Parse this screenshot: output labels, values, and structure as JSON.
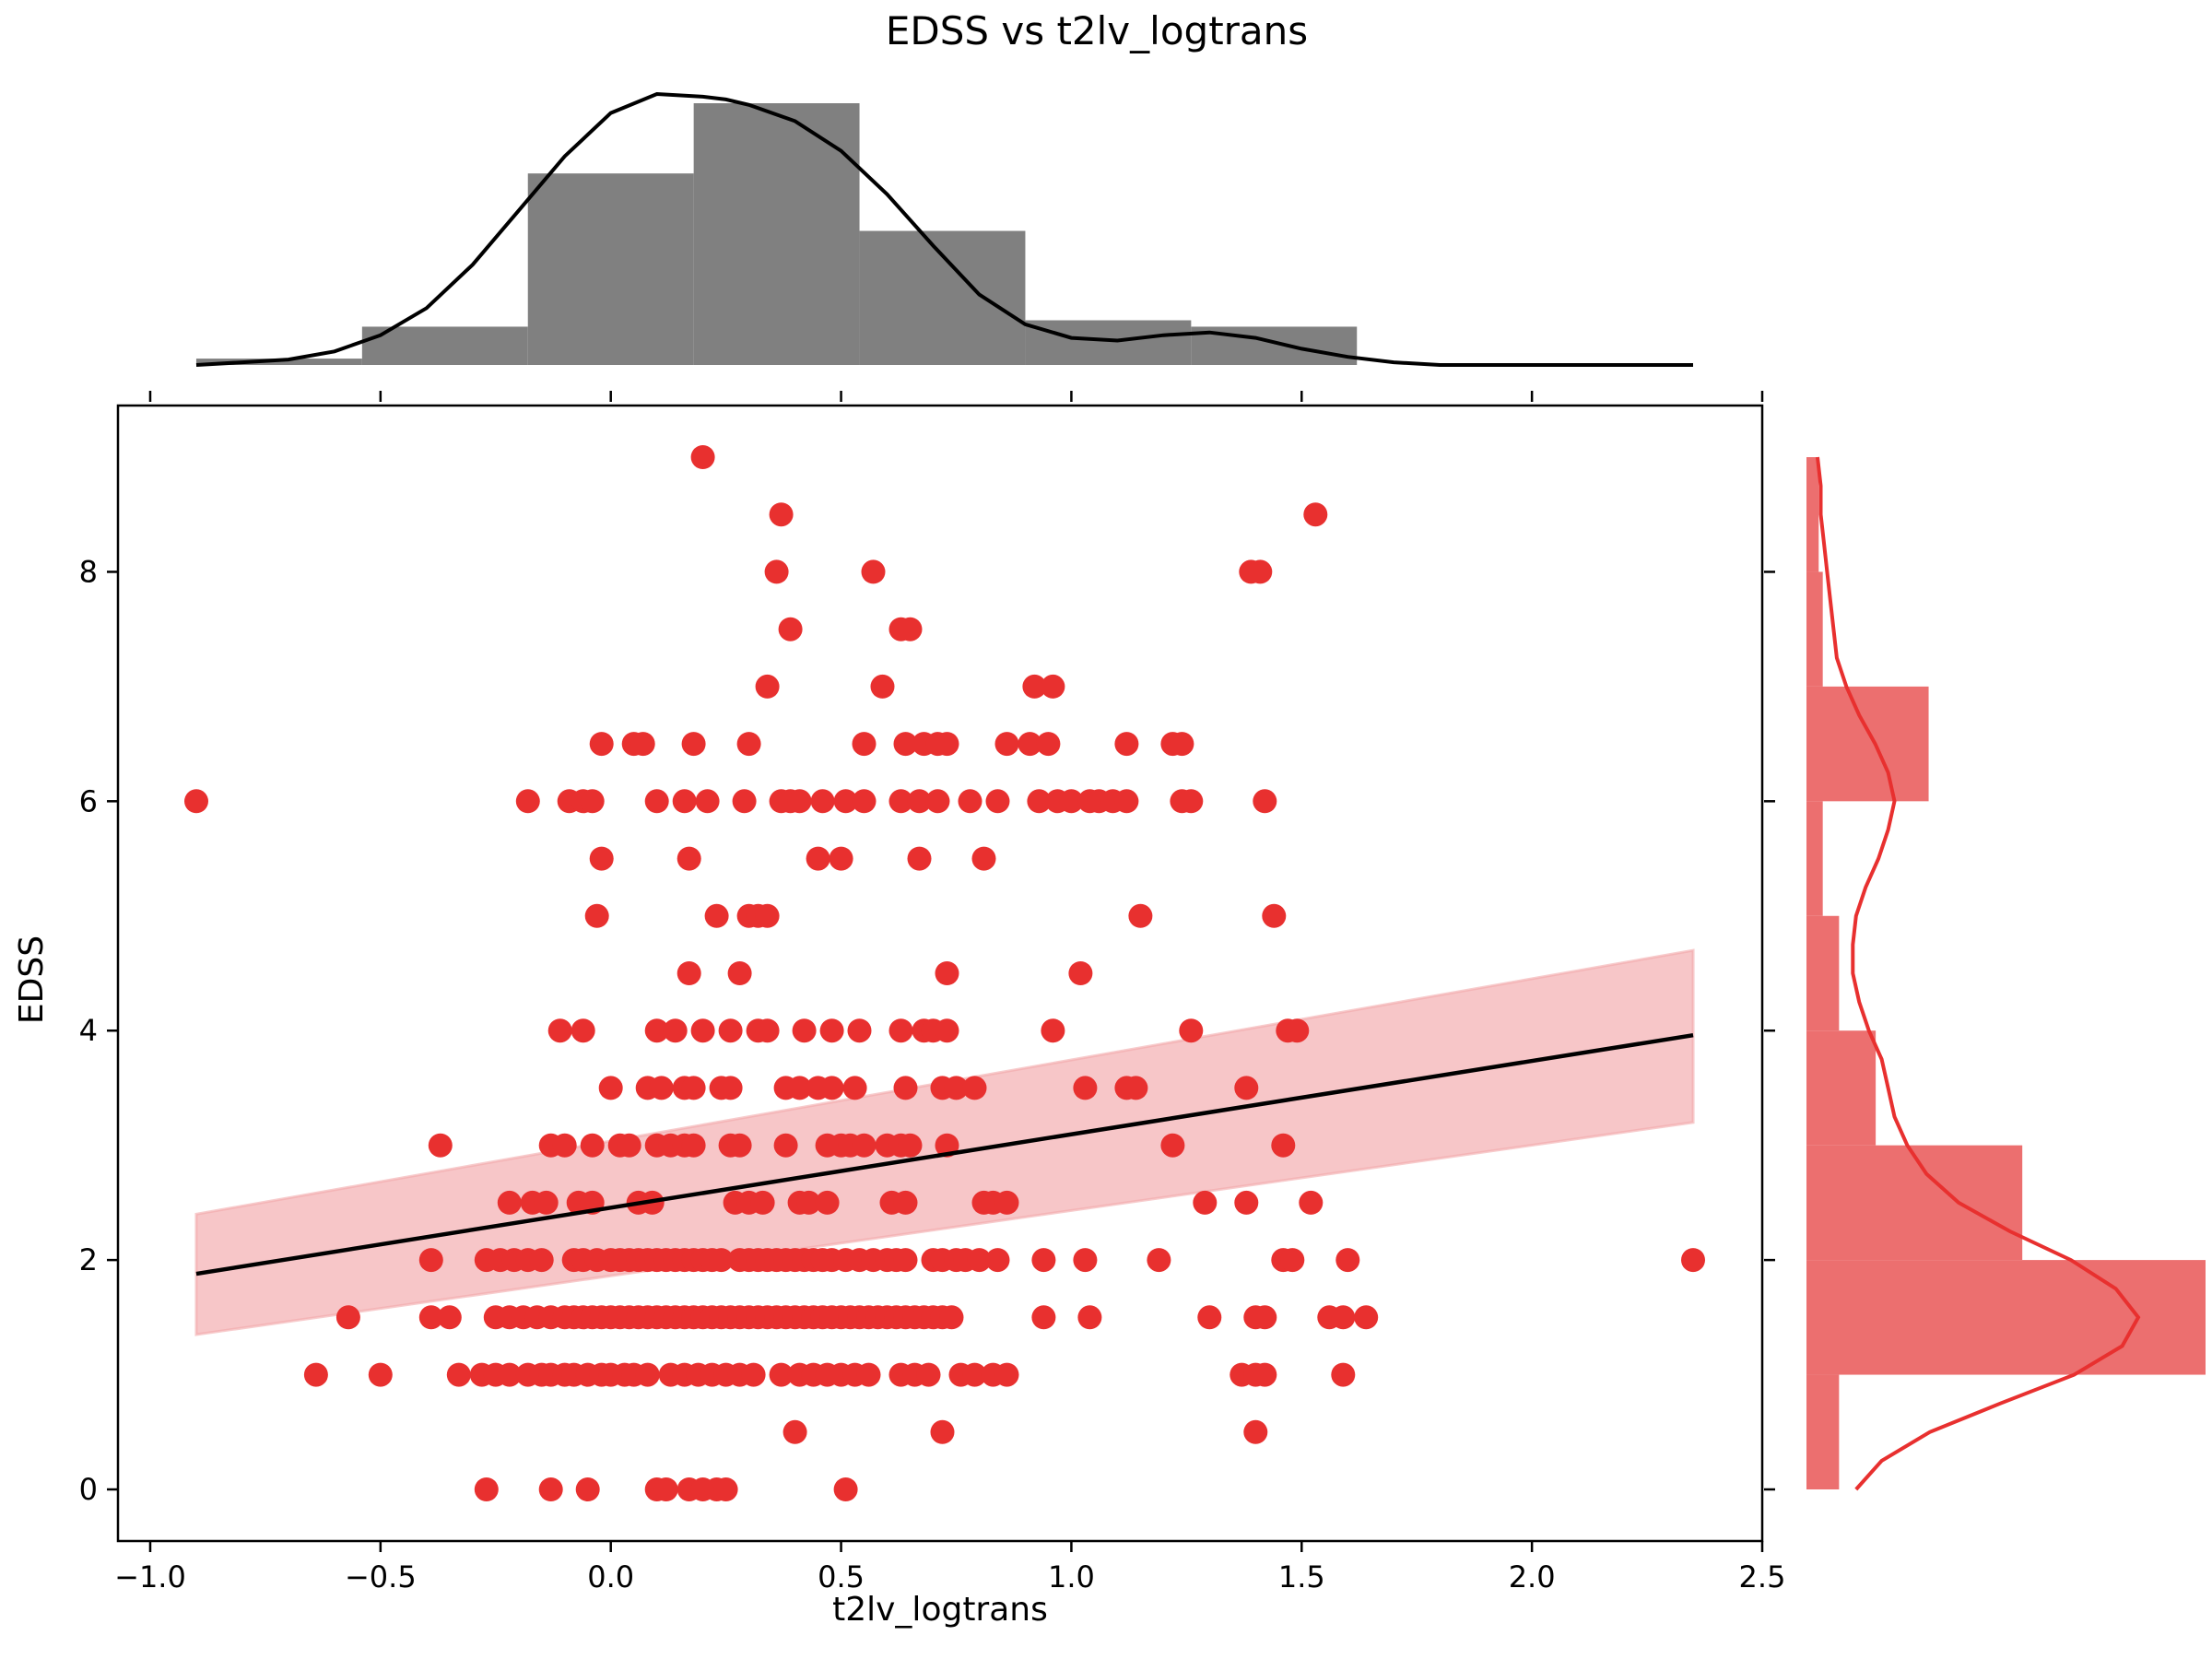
{
  "chart_data": {
    "type": "scatter",
    "title": "EDSS vs t2lv_logtrans",
    "xlabel": "t2lv_logtrans",
    "ylabel": "EDSS",
    "xlim": [
      -1.07,
      2.5
    ],
    "ylim": [
      -0.45,
      9.45
    ],
    "xticks": [
      -1.0,
      -0.5,
      0.0,
      0.5,
      1.0,
      1.5,
      2.0,
      2.5
    ],
    "xtick_labels": [
      "−1.0",
      "−0.5",
      "0.0",
      "0.5",
      "1.0",
      "1.5",
      "2.0",
      "2.5"
    ],
    "yticks": [
      0,
      2,
      4,
      6,
      8
    ],
    "ytick_labels": [
      "0",
      "2",
      "4",
      "6",
      "8"
    ],
    "grid": false,
    "colors": {
      "points": "#e8302f",
      "regression": "#000000",
      "band": "#f2a8aa",
      "x_hist": "#808080",
      "y_hist": "#ec6f6f",
      "y_kde": "#e8302f",
      "x_kde": "#000000"
    },
    "regression": {
      "x": [
        -0.9,
        2.35
      ],
      "y": [
        1.88,
        3.96
      ],
      "ci_upper": [
        2.4,
        4.7
      ],
      "ci_lower": [
        1.35,
        3.2
      ]
    },
    "points": [
      [
        -0.9,
        6
      ],
      [
        0.2,
        9
      ],
      [
        0.37,
        8.5
      ],
      [
        1.53,
        8.5
      ],
      [
        0.36,
        8
      ],
      [
        0.57,
        8
      ],
      [
        1.39,
        8
      ],
      [
        1.41,
        8
      ],
      [
        0.39,
        7.5
      ],
      [
        0.63,
        7.5
      ],
      [
        0.65,
        7.5
      ],
      [
        0.34,
        7
      ],
      [
        0.59,
        7
      ],
      [
        0.92,
        7
      ],
      [
        0.96,
        7
      ],
      [
        -0.02,
        6.5
      ],
      [
        0.05,
        6.5
      ],
      [
        0.07,
        6.5
      ],
      [
        0.18,
        6.5
      ],
      [
        0.3,
        6.5
      ],
      [
        0.55,
        6.5
      ],
      [
        0.64,
        6.5
      ],
      [
        0.68,
        6.5
      ],
      [
        0.71,
        6.5
      ],
      [
        0.73,
        6.5
      ],
      [
        0.86,
        6.5
      ],
      [
        0.91,
        6.5
      ],
      [
        0.95,
        6.5
      ],
      [
        1.12,
        6.5
      ],
      [
        1.22,
        6.5
      ],
      [
        1.24,
        6.5
      ],
      [
        -0.18,
        6
      ],
      [
        -0.09,
        6
      ],
      [
        -0.06,
        6
      ],
      [
        -0.04,
        6
      ],
      [
        0.1,
        6
      ],
      [
        0.16,
        6
      ],
      [
        0.21,
        6
      ],
      [
        0.29,
        6
      ],
      [
        0.37,
        6
      ],
      [
        0.39,
        6
      ],
      [
        0.41,
        6
      ],
      [
        0.46,
        6
      ],
      [
        0.51,
        6
      ],
      [
        0.55,
        6
      ],
      [
        0.63,
        6
      ],
      [
        0.67,
        6
      ],
      [
        0.71,
        6
      ],
      [
        0.78,
        6
      ],
      [
        0.84,
        6
      ],
      [
        0.93,
        6
      ],
      [
        0.97,
        6
      ],
      [
        1.0,
        6
      ],
      [
        1.04,
        6
      ],
      [
        1.06,
        6
      ],
      [
        1.09,
        6
      ],
      [
        1.12,
        6
      ],
      [
        1.24,
        6
      ],
      [
        1.26,
        6
      ],
      [
        1.42,
        6
      ],
      [
        -0.02,
        5.5
      ],
      [
        0.17,
        5.5
      ],
      [
        0.45,
        5.5
      ],
      [
        0.5,
        5.5
      ],
      [
        0.67,
        5.5
      ],
      [
        0.81,
        5.5
      ],
      [
        -0.03,
        5
      ],
      [
        0.23,
        5
      ],
      [
        0.3,
        5
      ],
      [
        0.32,
        5
      ],
      [
        0.34,
        5
      ],
      [
        1.15,
        5
      ],
      [
        1.44,
        5
      ],
      [
        0.17,
        4.5
      ],
      [
        0.28,
        4.5
      ],
      [
        0.73,
        4.5
      ],
      [
        1.02,
        4.5
      ],
      [
        -0.11,
        4
      ],
      [
        -0.06,
        4
      ],
      [
        0.1,
        4
      ],
      [
        0.14,
        4
      ],
      [
        0.2,
        4
      ],
      [
        0.26,
        4
      ],
      [
        0.32,
        4
      ],
      [
        0.34,
        4
      ],
      [
        0.42,
        4
      ],
      [
        0.48,
        4
      ],
      [
        0.54,
        4
      ],
      [
        0.63,
        4
      ],
      [
        0.68,
        4
      ],
      [
        0.7,
        4
      ],
      [
        0.73,
        4
      ],
      [
        0.96,
        4
      ],
      [
        1.26,
        4
      ],
      [
        1.47,
        4
      ],
      [
        1.49,
        4
      ],
      [
        0.0,
        3.5
      ],
      [
        0.08,
        3.5
      ],
      [
        0.11,
        3.5
      ],
      [
        0.16,
        3.5
      ],
      [
        0.18,
        3.5
      ],
      [
        0.24,
        3.5
      ],
      [
        0.26,
        3.5
      ],
      [
        0.38,
        3.5
      ],
      [
        0.41,
        3.5
      ],
      [
        0.45,
        3.5
      ],
      [
        0.48,
        3.5
      ],
      [
        0.53,
        3.5
      ],
      [
        0.64,
        3.5
      ],
      [
        0.72,
        3.5
      ],
      [
        0.75,
        3.5
      ],
      [
        0.79,
        3.5
      ],
      [
        1.03,
        3.5
      ],
      [
        1.12,
        3.5
      ],
      [
        1.14,
        3.5
      ],
      [
        1.38,
        3.5
      ],
      [
        -0.37,
        3
      ],
      [
        -0.13,
        3
      ],
      [
        -0.1,
        3
      ],
      [
        -0.04,
        3
      ],
      [
        0.02,
        3
      ],
      [
        0.04,
        3
      ],
      [
        0.1,
        3
      ],
      [
        0.13,
        3
      ],
      [
        0.16,
        3
      ],
      [
        0.18,
        3
      ],
      [
        0.26,
        3
      ],
      [
        0.28,
        3
      ],
      [
        0.38,
        3
      ],
      [
        0.47,
        3
      ],
      [
        0.5,
        3
      ],
      [
        0.52,
        3
      ],
      [
        0.55,
        3
      ],
      [
        0.6,
        3
      ],
      [
        0.63,
        3
      ],
      [
        0.65,
        3
      ],
      [
        0.73,
        3
      ],
      [
        1.22,
        3
      ],
      [
        1.46,
        3
      ],
      [
        -0.22,
        2.5
      ],
      [
        -0.17,
        2.5
      ],
      [
        -0.14,
        2.5
      ],
      [
        -0.07,
        2.5
      ],
      [
        -0.04,
        2.5
      ],
      [
        0.06,
        2.5
      ],
      [
        0.09,
        2.5
      ],
      [
        0.27,
        2.5
      ],
      [
        0.3,
        2.5
      ],
      [
        0.33,
        2.5
      ],
      [
        0.41,
        2.5
      ],
      [
        0.43,
        2.5
      ],
      [
        0.47,
        2.5
      ],
      [
        0.61,
        2.5
      ],
      [
        0.64,
        2.5
      ],
      [
        0.81,
        2.5
      ],
      [
        0.83,
        2.5
      ],
      [
        0.86,
        2.5
      ],
      [
        1.29,
        2.5
      ],
      [
        1.38,
        2.5
      ],
      [
        1.52,
        2.5
      ],
      [
        -0.39,
        2
      ],
      [
        -0.27,
        2
      ],
      [
        -0.24,
        2
      ],
      [
        -0.21,
        2
      ],
      [
        -0.18,
        2
      ],
      [
        -0.15,
        2
      ],
      [
        -0.08,
        2
      ],
      [
        -0.06,
        2
      ],
      [
        -0.03,
        2
      ],
      [
        0.0,
        2
      ],
      [
        0.02,
        2
      ],
      [
        0.04,
        2
      ],
      [
        0.06,
        2
      ],
      [
        0.08,
        2
      ],
      [
        0.1,
        2
      ],
      [
        0.12,
        2
      ],
      [
        0.14,
        2
      ],
      [
        0.16,
        2
      ],
      [
        0.18,
        2
      ],
      [
        0.2,
        2
      ],
      [
        0.22,
        2
      ],
      [
        0.24,
        2
      ],
      [
        0.28,
        2
      ],
      [
        0.3,
        2
      ],
      [
        0.32,
        2
      ],
      [
        0.34,
        2
      ],
      [
        0.36,
        2
      ],
      [
        0.38,
        2
      ],
      [
        0.4,
        2
      ],
      [
        0.42,
        2
      ],
      [
        0.44,
        2
      ],
      [
        0.46,
        2
      ],
      [
        0.48,
        2
      ],
      [
        0.51,
        2
      ],
      [
        0.54,
        2
      ],
      [
        0.57,
        2
      ],
      [
        0.6,
        2
      ],
      [
        0.62,
        2
      ],
      [
        0.64,
        2
      ],
      [
        0.7,
        2
      ],
      [
        0.72,
        2
      ],
      [
        0.75,
        2
      ],
      [
        0.77,
        2
      ],
      [
        0.8,
        2
      ],
      [
        0.84,
        2
      ],
      [
        0.94,
        2
      ],
      [
        1.03,
        2
      ],
      [
        1.19,
        2
      ],
      [
        1.46,
        2
      ],
      [
        1.48,
        2
      ],
      [
        1.6,
        2
      ],
      [
        2.35,
        2
      ],
      [
        -0.57,
        1.5
      ],
      [
        -0.39,
        1.5
      ],
      [
        -0.35,
        1.5
      ],
      [
        -0.25,
        1.5
      ],
      [
        -0.22,
        1.5
      ],
      [
        -0.19,
        1.5
      ],
      [
        -0.16,
        1.5
      ],
      [
        -0.13,
        1.5
      ],
      [
        -0.1,
        1.5
      ],
      [
        -0.08,
        1.5
      ],
      [
        -0.06,
        1.5
      ],
      [
        -0.04,
        1.5
      ],
      [
        -0.02,
        1.5
      ],
      [
        0.0,
        1.5
      ],
      [
        0.02,
        1.5
      ],
      [
        0.04,
        1.5
      ],
      [
        0.06,
        1.5
      ],
      [
        0.08,
        1.5
      ],
      [
        0.1,
        1.5
      ],
      [
        0.12,
        1.5
      ],
      [
        0.14,
        1.5
      ],
      [
        0.16,
        1.5
      ],
      [
        0.18,
        1.5
      ],
      [
        0.2,
        1.5
      ],
      [
        0.22,
        1.5
      ],
      [
        0.24,
        1.5
      ],
      [
        0.26,
        1.5
      ],
      [
        0.28,
        1.5
      ],
      [
        0.3,
        1.5
      ],
      [
        0.32,
        1.5
      ],
      [
        0.34,
        1.5
      ],
      [
        0.36,
        1.5
      ],
      [
        0.38,
        1.5
      ],
      [
        0.4,
        1.5
      ],
      [
        0.42,
        1.5
      ],
      [
        0.44,
        1.5
      ],
      [
        0.46,
        1.5
      ],
      [
        0.48,
        1.5
      ],
      [
        0.5,
        1.5
      ],
      [
        0.52,
        1.5
      ],
      [
        0.54,
        1.5
      ],
      [
        0.56,
        1.5
      ],
      [
        0.58,
        1.5
      ],
      [
        0.6,
        1.5
      ],
      [
        0.62,
        1.5
      ],
      [
        0.64,
        1.5
      ],
      [
        0.66,
        1.5
      ],
      [
        0.68,
        1.5
      ],
      [
        0.7,
        1.5
      ],
      [
        0.72,
        1.5
      ],
      [
        0.74,
        1.5
      ],
      [
        0.94,
        1.5
      ],
      [
        1.04,
        1.5
      ],
      [
        1.3,
        1.5
      ],
      [
        1.4,
        1.5
      ],
      [
        1.42,
        1.5
      ],
      [
        1.56,
        1.5
      ],
      [
        1.59,
        1.5
      ],
      [
        1.64,
        1.5
      ],
      [
        -0.64,
        1
      ],
      [
        -0.5,
        1
      ],
      [
        -0.33,
        1
      ],
      [
        -0.28,
        1
      ],
      [
        -0.25,
        1
      ],
      [
        -0.22,
        1
      ],
      [
        -0.18,
        1
      ],
      [
        -0.15,
        1
      ],
      [
        -0.13,
        1
      ],
      [
        -0.1,
        1
      ],
      [
        -0.08,
        1
      ],
      [
        -0.05,
        1
      ],
      [
        -0.02,
        1
      ],
      [
        0.0,
        1
      ],
      [
        0.03,
        1
      ],
      [
        0.05,
        1
      ],
      [
        0.08,
        1
      ],
      [
        0.13,
        1
      ],
      [
        0.16,
        1
      ],
      [
        0.19,
        1
      ],
      [
        0.22,
        1
      ],
      [
        0.25,
        1
      ],
      [
        0.28,
        1
      ],
      [
        0.31,
        1
      ],
      [
        0.37,
        1
      ],
      [
        0.41,
        1
      ],
      [
        0.44,
        1
      ],
      [
        0.47,
        1
      ],
      [
        0.5,
        1
      ],
      [
        0.53,
        1
      ],
      [
        0.56,
        1
      ],
      [
        0.63,
        1
      ],
      [
        0.66,
        1
      ],
      [
        0.69,
        1
      ],
      [
        0.76,
        1
      ],
      [
        0.79,
        1
      ],
      [
        0.83,
        1
      ],
      [
        0.86,
        1
      ],
      [
        1.37,
        1
      ],
      [
        1.4,
        1
      ],
      [
        1.42,
        1
      ],
      [
        1.59,
        1
      ],
      [
        0.4,
        0.5
      ],
      [
        0.72,
        0.5
      ],
      [
        1.4,
        0.5
      ],
      [
        -0.27,
        0
      ],
      [
        -0.13,
        0
      ],
      [
        -0.05,
        0
      ],
      [
        0.1,
        0
      ],
      [
        0.12,
        0
      ],
      [
        0.17,
        0
      ],
      [
        0.2,
        0
      ],
      [
        0.23,
        0
      ],
      [
        0.25,
        0
      ],
      [
        0.51,
        0
      ]
    ],
    "x_hist": {
      "edges": [
        -0.9,
        -0.54,
        -0.18,
        0.18,
        0.54,
        0.9,
        1.26,
        1.62,
        1.98,
        2.35
      ],
      "counts": [
        1,
        6,
        30,
        41,
        21,
        7,
        6,
        0,
        0
      ]
    },
    "x_kde": {
      "x": [
        -0.9,
        -0.8,
        -0.7,
        -0.6,
        -0.5,
        -0.4,
        -0.3,
        -0.2,
        -0.1,
        0.0,
        0.1,
        0.2,
        0.25,
        0.3,
        0.4,
        0.5,
        0.6,
        0.7,
        0.8,
        0.9,
        1.0,
        1.1,
        1.2,
        1.3,
        1.4,
        1.5,
        1.6,
        1.7,
        1.8,
        1.9,
        2.0,
        2.1,
        2.2,
        2.35
      ],
      "y": [
        0.0,
        0.01,
        0.02,
        0.05,
        0.11,
        0.21,
        0.37,
        0.57,
        0.77,
        0.93,
        1.0,
        0.99,
        0.98,
        0.96,
        0.9,
        0.79,
        0.63,
        0.44,
        0.26,
        0.15,
        0.1,
        0.09,
        0.11,
        0.12,
        0.1,
        0.06,
        0.03,
        0.01,
        0.0,
        0.0,
        0.0,
        0.0,
        0.0,
        0.0
      ]
    },
    "y_hist": {
      "edges": [
        0,
        1,
        2,
        3,
        4,
        5,
        6,
        7,
        8,
        9
      ],
      "counts": [
        8,
        98,
        53,
        17,
        8,
        4,
        30,
        4,
        3
      ]
    },
    "y_kde": {
      "y": [
        0.0,
        0.25,
        0.5,
        0.75,
        1.0,
        1.25,
        1.5,
        1.75,
        2.0,
        2.25,
        2.5,
        2.75,
        3.0,
        3.25,
        3.5,
        3.75,
        4.0,
        4.25,
        4.5,
        4.75,
        5.0,
        5.25,
        5.5,
        5.75,
        6.0,
        6.25,
        6.5,
        6.75,
        7.0,
        7.25,
        7.5,
        7.75,
        8.0,
        8.25,
        8.5,
        8.75,
        9.0
      ],
      "x": [
        0.12,
        0.2,
        0.35,
        0.57,
        0.8,
        0.95,
        1.0,
        0.93,
        0.79,
        0.6,
        0.44,
        0.34,
        0.28,
        0.24,
        0.22,
        0.2,
        0.16,
        0.13,
        0.11,
        0.11,
        0.12,
        0.15,
        0.19,
        0.22,
        0.24,
        0.22,
        0.18,
        0.13,
        0.09,
        0.06,
        0.05,
        0.04,
        0.03,
        0.02,
        0.01,
        0.01,
        0.0
      ]
    }
  }
}
